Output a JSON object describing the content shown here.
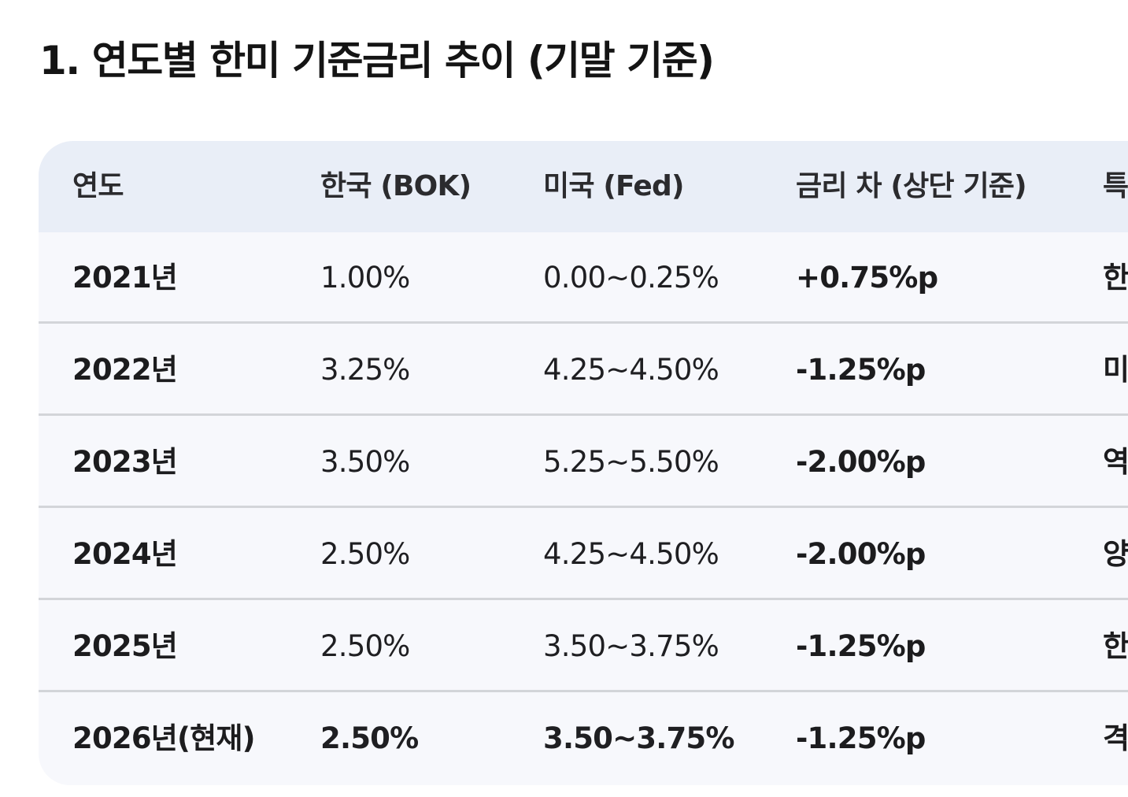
{
  "heading": "1. 연도별 한미 기준금리 추이 (기말 기준)",
  "table": {
    "headers": {
      "year": "연도",
      "korea": "한국 (BOK)",
      "us": "미국 (Fed)",
      "diff": "금리 차 (상단 기준)",
      "note": "특"
    },
    "rows": [
      {
        "year": "2021년",
        "korea": "1.00%",
        "us": "0.00~0.25%",
        "diff": "+0.75%p",
        "note": "한"
      },
      {
        "year": "2022년",
        "korea": "3.25%",
        "us": "4.25~4.50%",
        "diff": "-1.25%p",
        "note": "미"
      },
      {
        "year": "2023년",
        "korea": "3.50%",
        "us": "5.25~5.50%",
        "diff": "-2.00%p",
        "note": "역"
      },
      {
        "year": "2024년",
        "korea": "2.50%",
        "us": "4.25~4.50%",
        "diff": "-2.00%p",
        "note": "양"
      },
      {
        "year": "2025년",
        "korea": "2.50%",
        "us": "3.50~3.75%",
        "diff": "-1.25%p",
        "note": "한"
      },
      {
        "year": "2026년(현재)",
        "korea": "2.50%",
        "us": "3.50~3.75%",
        "diff": "-1.25%p",
        "note": "격"
      }
    ]
  }
}
